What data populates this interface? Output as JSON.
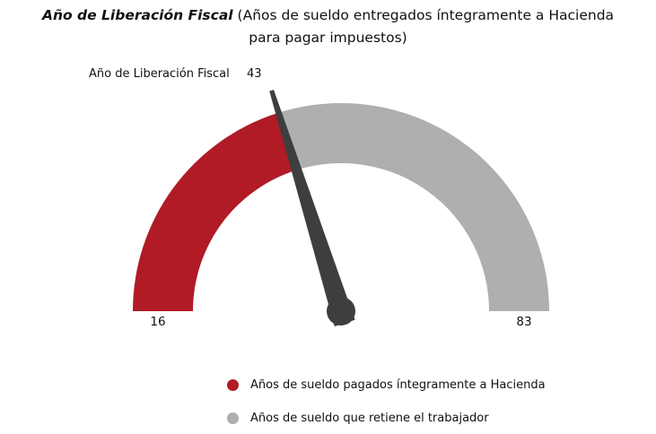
{
  "title": {
    "emphasis": "Año de Liberación Fiscal",
    "rest": " (Años de sueldo entregados íntegramente a Hacienda",
    "line2": "para pagar impuestos)"
  },
  "gauge": {
    "label": "Año de Liberación Fiscal",
    "value_label": "43",
    "min_label": "16",
    "max_label": "83"
  },
  "legend": [
    {
      "color": "#B01B26",
      "label": "Años de sueldo pagados íntegramente a Hacienda"
    },
    {
      "color": "#AFAFAF",
      "label": "Años de sueldo que retiene el trabajador"
    }
  ],
  "colors": {
    "segment_taxes": "#B01B26",
    "segment_worker": "#AFAFAF",
    "needle": "#3E3E3E",
    "text": "#111111"
  },
  "chart_data": {
    "type": "gauge",
    "title": "Año de Liberación Fiscal (Años de sueldo entregados íntegramente a Hacienda para pagar impuestos)",
    "min": 16,
    "max": 83,
    "value": 43,
    "value_name": "Año de Liberación Fiscal",
    "segments": [
      {
        "name": "Años de sueldo pagados íntegramente a Hacienda",
        "from": 16,
        "to": 43,
        "color": "#B01B26"
      },
      {
        "name": "Años de sueldo que retiene el trabajador",
        "from": 43,
        "to": 83,
        "color": "#AFAFAF"
      }
    ],
    "tick_labels": [
      "16",
      "43",
      "83"
    ],
    "legend_position": "bottom"
  }
}
